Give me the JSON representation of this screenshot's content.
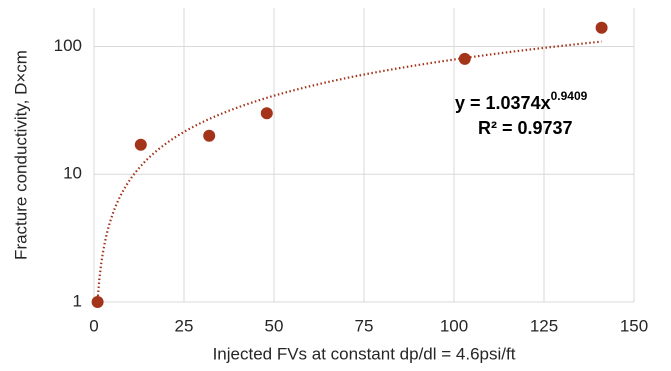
{
  "chart_data": {
    "type": "scatter",
    "x_label": "Injected FVs at constant dp/dl = 4.6psi/ft",
    "y_label": "Fracture conductivity, D×cm",
    "series": [
      {
        "name": "Fracture conductivity",
        "color": "#a3341a",
        "x": [
          1,
          13,
          32,
          48,
          103,
          141
        ],
        "values": [
          1,
          17,
          20,
          30,
          80,
          140
        ]
      }
    ],
    "trendline": {
      "type": "power",
      "a": 1.0374,
      "b": 0.9409,
      "color": "#a3341a"
    },
    "annotation": {
      "equation": "y = 1.0374x",
      "exponent": "0.9409",
      "r_squared": "R² = 0.9737"
    },
    "xlim": [
      0,
      150
    ],
    "xticks": [
      0,
      25,
      50,
      75,
      100,
      125,
      150
    ],
    "ylim": [
      1,
      200
    ],
    "yticks": [
      1,
      10,
      100
    ],
    "y_log": true,
    "grid": true
  }
}
